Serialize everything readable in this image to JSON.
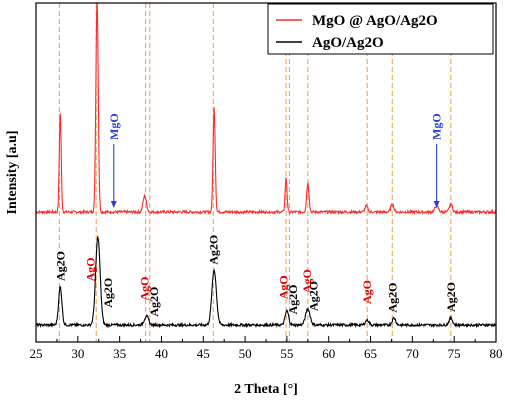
{
  "chart_data": {
    "type": "line",
    "title": "",
    "xlabel": "2 Theta [°]",
    "ylabel": "Intensity [a.u]",
    "xlim": [
      25,
      80
    ],
    "x_ticks": [
      "25",
      "30",
      "35",
      "40",
      "45",
      "50",
      "55",
      "60",
      "65",
      "70",
      "75",
      "80"
    ],
    "y_ticks_shown": false,
    "legend_position": "top-right",
    "colors": {
      "composite": "#ff2a2a",
      "base": "#000000",
      "reference_line": "#f7a64a",
      "mgo_label": "#2a3fd6",
      "ago_label": "#e00000",
      "ag2o_label": "#000000"
    },
    "reference_lines_2theta": [
      27.8,
      32.2,
      38.1,
      38.6,
      46.2,
      54.9,
      55.3,
      57.5,
      64.6,
      67.6,
      74.6
    ],
    "series": [
      {
        "name": "MgO @ AgO/Ag2O",
        "color": "#ff2a2a",
        "baseline": 212,
        "peaks": [
          {
            "x": 27.9,
            "height": 100,
            "width": 0.16
          },
          {
            "x": 32.3,
            "height": 212,
            "width": 0.2
          },
          {
            "x": 38.0,
            "height": 16,
            "width": 0.28
          },
          {
            "x": 46.3,
            "height": 104,
            "width": 0.18
          },
          {
            "x": 54.9,
            "height": 34,
            "width": 0.16
          },
          {
            "x": 57.5,
            "height": 29,
            "width": 0.2
          },
          {
            "x": 64.5,
            "height": 6,
            "width": 0.25
          },
          {
            "x": 67.6,
            "height": 8,
            "width": 0.25
          },
          {
            "x": 72.9,
            "height": 6,
            "width": 0.3
          },
          {
            "x": 74.6,
            "height": 8,
            "width": 0.25
          }
        ]
      },
      {
        "name": "AgO/Ag2O",
        "color": "#000000",
        "baseline": 325,
        "peaks": [
          {
            "x": 27.9,
            "height": 38,
            "width": 0.28
          },
          {
            "x": 32.4,
            "height": 88,
            "width": 0.38
          },
          {
            "x": 38.2,
            "height": 9,
            "width": 0.35
          },
          {
            "x": 46.3,
            "height": 55,
            "width": 0.38
          },
          {
            "x": 55.0,
            "height": 14,
            "width": 0.3
          },
          {
            "x": 57.5,
            "height": 16,
            "width": 0.38
          },
          {
            "x": 64.6,
            "height": 5,
            "width": 0.3
          },
          {
            "x": 67.8,
            "height": 7,
            "width": 0.3
          },
          {
            "x": 74.6,
            "height": 7,
            "width": 0.3
          }
        ]
      }
    ],
    "annotations": [
      {
        "text": "MgO",
        "x": 34.3,
        "kind": "mgo",
        "arrow": true
      },
      {
        "text": "MgO",
        "x": 72.9,
        "kind": "mgo",
        "arrow": true
      },
      {
        "text": "Ag2O",
        "x": 27.9,
        "kind": "ag2o"
      },
      {
        "text": "AgO",
        "x": 31.5,
        "kind": "ago"
      },
      {
        "text": "Ag2O",
        "x": 33.6,
        "kind": "ag2o"
      },
      {
        "text": "AgO",
        "x": 38.0,
        "kind": "ago"
      },
      {
        "text": "Ag2O",
        "x": 39.1,
        "kind": "ag2o"
      },
      {
        "text": "Ag2O",
        "x": 46.2,
        "kind": "ag2o"
      },
      {
        "text": "AgO",
        "x": 54.6,
        "kind": "ago"
      },
      {
        "text": "Ag2O",
        "x": 55.7,
        "kind": "ag2o"
      },
      {
        "text": "AgO",
        "x": 57.4,
        "kind": "ago"
      },
      {
        "text": "Ag2O",
        "x": 58.2,
        "kind": "ag2o"
      },
      {
        "text": "AgO",
        "x": 64.6,
        "kind": "ago"
      },
      {
        "text": "Ag2O",
        "x": 67.6,
        "kind": "ag2o"
      },
      {
        "text": "Ag2O",
        "x": 74.6,
        "kind": "ag2o"
      }
    ]
  }
}
